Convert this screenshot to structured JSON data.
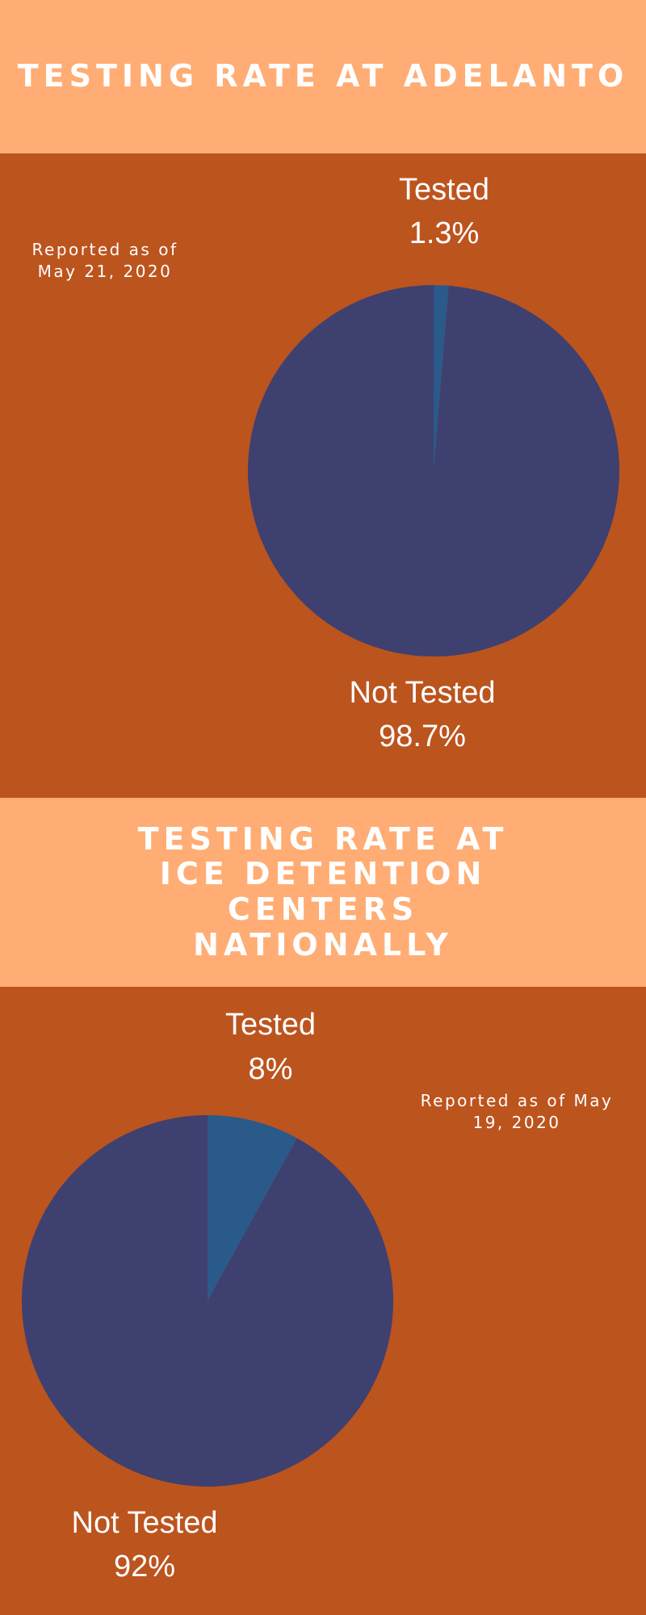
{
  "sections": [
    {
      "title": "TESTING RATE AT ADELANTO",
      "note": "Reported as of May 21, 2020"
    },
    {
      "title": "TESTING RATE AT ICE DETENTION CENTERS NATIONALLY",
      "note": "Reported as of May 19, 2020"
    }
  ],
  "chart_data": [
    {
      "type": "pie",
      "title": "TESTING RATE AT ADELANTO",
      "labels": [
        "Tested",
        "Not Tested"
      ],
      "values": [
        1.3,
        98.7
      ],
      "value_labels": [
        "1.3%",
        "98.7%"
      ],
      "colors": [
        "#2a5a8a",
        "#3e406f"
      ]
    },
    {
      "type": "pie",
      "title": "TESTING RATE AT ICE DETENTION CENTERS NATIONALLY",
      "labels": [
        "Tested",
        "Not Tested"
      ],
      "values": [
        8,
        92
      ],
      "value_labels": [
        "8%",
        "92%"
      ],
      "colors": [
        "#2a5a8a",
        "#3e406f"
      ]
    }
  ]
}
